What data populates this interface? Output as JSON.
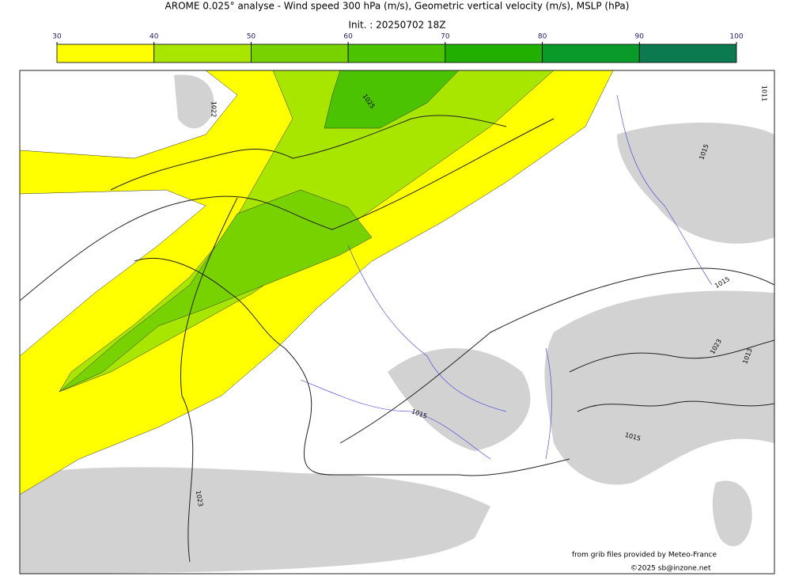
{
  "title": "AROME 0.025° analyse - Wind speed 300 hPa (m/s), Geometric vertical velocity (m/s), MSLP (hPa)",
  "subtitle": "Init. : 20250702 18Z",
  "colorbar": {
    "ticks": [
      30,
      40,
      50,
      60,
      70,
      80,
      90,
      100
    ],
    "colors": [
      "#ffff00",
      "#a8e600",
      "#78d200",
      "#4cc300",
      "#22b000",
      "#0a9a2a",
      "#0b7a50"
    ]
  },
  "contour_labels": [
    "1025",
    "1022",
    "1015",
    "1011",
    "1015",
    "1015",
    "1023",
    "1015",
    "1023",
    "1013"
  ],
  "credits": [
    "from grib files provided by Meteo-France",
    "©2025 sb@inzone.net"
  ]
}
